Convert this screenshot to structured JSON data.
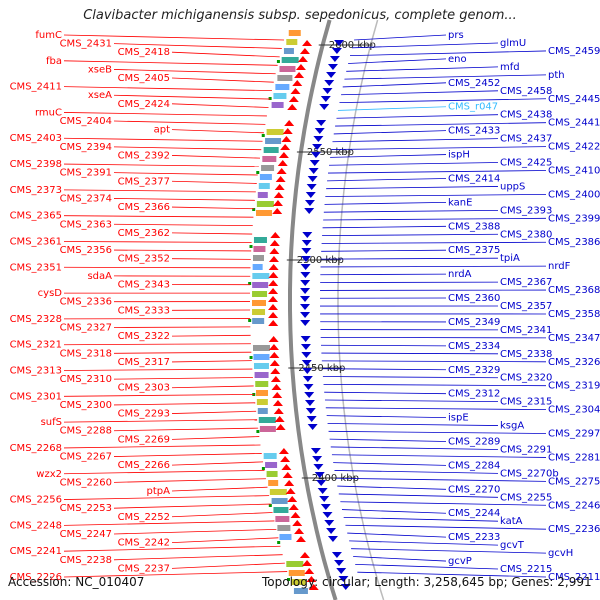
{
  "title": "Clavibacter michiganensis subsp. sepedonicus, complete genom...",
  "accession": "Accession: NC_010407",
  "topology": "Topology: circular; Length: 3,258,645 bp; Genes: 2,991",
  "colors": {
    "reverse_strand": "#ff0000",
    "forward_strand": "#0000cc",
    "rna": "#33bbff",
    "backbone": "#888888",
    "tick": "#333333"
  },
  "scale_ticks": [
    "2600 kbp",
    "2550 kbp",
    "2500 kbp",
    "2450 kbp",
    "2400 kbp"
  ],
  "left_labels": [
    "fumC",
    "CMS_2431",
    "CMS_2418",
    "fba",
    "xseB",
    "CMS_2405",
    "CMS_2411",
    "xseA",
    "CMS_2424",
    "rmuC",
    "CMS_2404",
    "apt",
    "CMS_2403",
    "CMS_2394",
    "CMS_2392",
    "CMS_2398",
    "CMS_2391",
    "CMS_2377",
    "CMS_2373",
    "CMS_2374",
    "CMS_2366",
    "CMS_2365",
    "CMS_2363",
    "CMS_2362",
    "CMS_2361",
    "CMS_2356",
    "CMS_2352",
    "CMS_2351",
    "sdaA",
    "CMS_2343",
    "cysD",
    "CMS_2336",
    "CMS_2333",
    "CMS_2328",
    "CMS_2327",
    "CMS_2322",
    "CMS_2321",
    "CMS_2318",
    "CMS_2317",
    "CMS_2313",
    "CMS_2310",
    "CMS_2303",
    "CMS_2301",
    "CMS_2300",
    "CMS_2293",
    "sufS",
    "CMS_2288",
    "CMS_2269",
    "CMS_2268",
    "CMS_2267",
    "CMS_2266",
    "wzx2",
    "CMS_2260",
    "ptpA",
    "CMS_2256",
    "CMS_2253",
    "CMS_2252",
    "CMS_2248",
    "CMS_2247",
    "CMS_2242",
    "CMS_2241",
    "CMS_2238",
    "CMS_2237",
    "CMS_2226"
  ],
  "right_labels": [
    "prs",
    "glmU",
    "CMS_2459",
    "eno",
    "mfd",
    "pth",
    "CMS_2452",
    "CMS_2458",
    "CMS_2445",
    "CMS_r047",
    "CMS_2438",
    "CMS_2441",
    "CMS_2433",
    "CMS_2437",
    "CMS_2422",
    "ispH",
    "CMS_2425",
    "CMS_2410",
    "CMS_2414",
    "uppS",
    "CMS_2400",
    "kanE",
    "CMS_2393",
    "CMS_2399",
    "CMS_2388",
    "CMS_2380",
    "CMS_2386",
    "CMS_2375",
    "tpiA",
    "nrdF",
    "nrdA",
    "CMS_2367",
    "CMS_2368",
    "CMS_2360",
    "CMS_2357",
    "CMS_2358",
    "CMS_2349",
    "CMS_2341",
    "CMS_2347",
    "CMS_2334",
    "CMS_2338",
    "CMS_2326",
    "CMS_2329",
    "CMS_2320",
    "CMS_2319",
    "CMS_2312",
    "CMS_2315",
    "CMS_2304",
    "ispE",
    "ksgA",
    "CMS_2297",
    "CMS_2289",
    "CMS_2291",
    "CMS_2281",
    "CMS_2284",
    "CMS_2270b",
    "CMS_2275",
    "CMS_2270",
    "CMS_2255",
    "CMS_2246",
    "CMS_2244",
    "katA",
    "CMS_2236",
    "CMS_2233",
    "gcvT",
    "gcvH",
    "gcvP",
    "CMS_2215",
    "CMS_2211"
  ]
}
